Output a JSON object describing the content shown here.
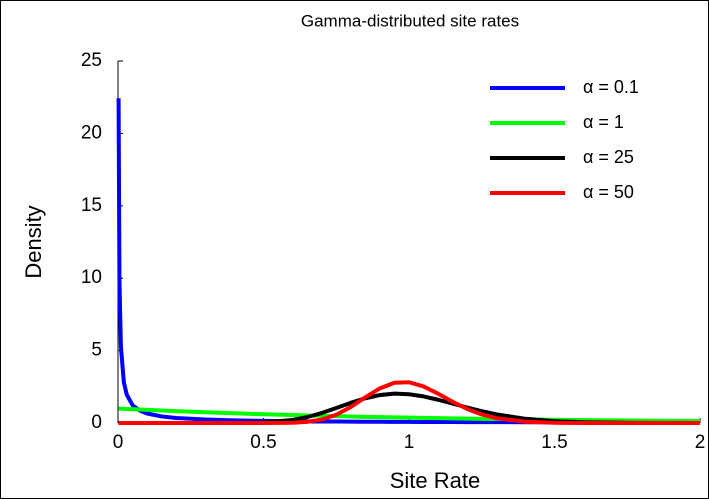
{
  "chart_data": {
    "type": "line",
    "title": "Gamma-distributed site rates",
    "xlabel": "Site Rate",
    "ylabel": "Density",
    "x": [
      0.002,
      0.005,
      0.01,
      0.02,
      0.03,
      0.05,
      0.075,
      0.1,
      0.15,
      0.2,
      0.3,
      0.4,
      0.5,
      0.6,
      0.65,
      0.7,
      0.75,
      0.8,
      0.85,
      0.9,
      0.95,
      1,
      1.05,
      1.1,
      1.15,
      1.2,
      1.25,
      1.3,
      1.4,
      1.5,
      1.6,
      1.8,
      2
    ],
    "series": [
      {
        "name": "α = 0.1",
        "color": "#0000ff",
        "values": [
          22.43,
          9.83,
          5.27,
          2.82,
          1.96,
          1.23,
          0.859,
          0.657,
          0.454,
          0.348,
          0.239,
          0.183,
          0.148,
          0.125,
          0.115,
          0.107,
          0.1,
          0.094,
          0.089,
          0.084,
          0.079,
          0.076,
          0.072,
          0.069,
          0.066,
          0.063,
          0.06,
          0.058,
          0.054,
          0.05,
          0.047,
          0.041,
          0.037
        ]
      },
      {
        "name": "α = 1",
        "color": "#00ff00",
        "values": [
          0.998,
          0.995,
          0.99,
          0.98,
          0.97,
          0.951,
          0.928,
          0.905,
          0.861,
          0.819,
          0.741,
          0.67,
          0.607,
          0.549,
          0.522,
          0.497,
          0.472,
          0.449,
          0.427,
          0.407,
          0.387,
          0.368,
          0.35,
          0.333,
          0.317,
          0.301,
          0.287,
          0.273,
          0.247,
          0.223,
          0.202,
          0.165,
          0.135
        ]
      },
      {
        "name": "α = 25",
        "color": "#000000",
        "values": [
          0,
          0,
          0,
          0,
          0,
          0,
          0,
          0,
          0,
          0,
          0,
          0.002,
          0.032,
          0.207,
          0.406,
          0.689,
          1.033,
          1.393,
          1.71,
          1.93,
          2.026,
          1.988,
          1.837,
          1.606,
          1.338,
          1.065,
          0.812,
          0.597,
          0.29,
          0.125,
          0.048,
          0.006,
          0.001
        ]
      },
      {
        "name": "α = 50",
        "color": "#ff0000",
        "values": [
          0,
          0,
          0,
          0,
          0,
          0,
          0,
          0,
          0,
          0,
          0,
          0,
          0,
          0.018,
          0.076,
          0.236,
          0.571,
          1.106,
          1.772,
          2.392,
          2.779,
          2.815,
          2.524,
          2.024,
          1.467,
          0.969,
          0.588,
          0.33,
          0.084,
          0.017,
          0.003,
          0,
          0
        ]
      }
    ],
    "xlim": [
      0,
      2
    ],
    "ylim": [
      0,
      25
    ],
    "xticks": [
      0,
      0.5,
      1,
      1.5,
      2
    ],
    "yticks": [
      0,
      5,
      10,
      15,
      20,
      25
    ],
    "legend": "upper right"
  }
}
